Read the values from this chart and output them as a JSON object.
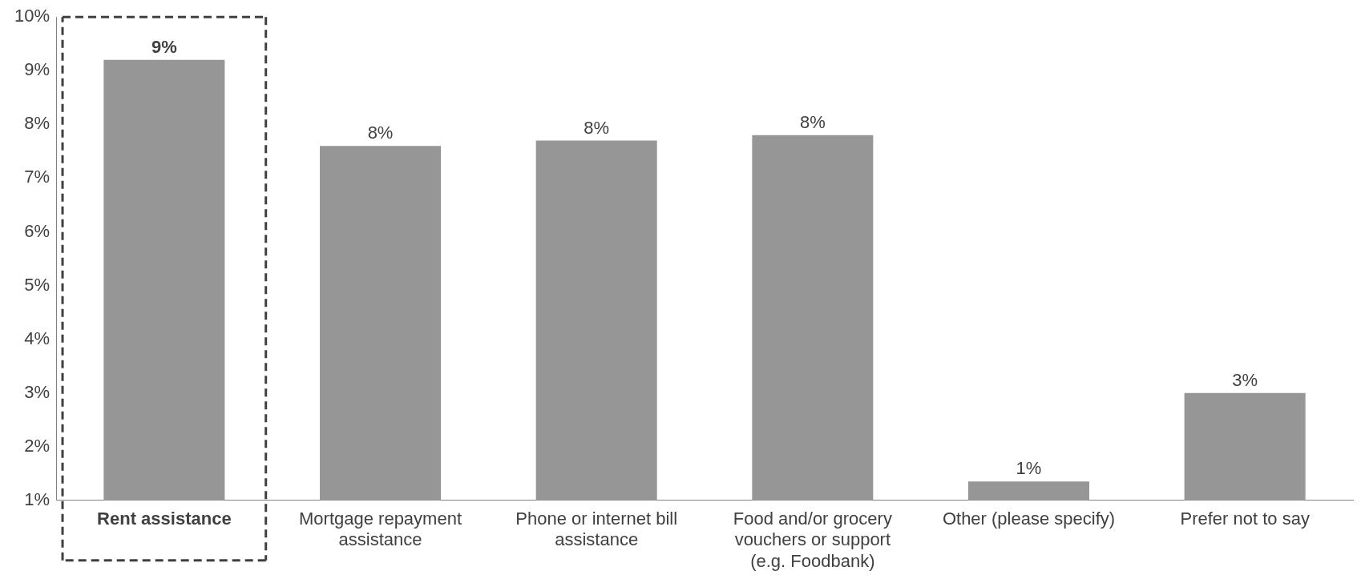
{
  "chart_data": {
    "type": "bar",
    "categories": [
      "Rent assistance",
      "Mortgage repayment assistance",
      "Phone or internet bill assistance",
      "Food and/or grocery vouchers or support (e.g. Foodbank)",
      "Other (please specify)",
      "Prefer not to say"
    ],
    "values": [
      9.2,
      7.6,
      7.7,
      7.8,
      1.35,
      3.0
    ],
    "value_labels": [
      "9%",
      "8%",
      "8%",
      "8%",
      "1%",
      "3%"
    ],
    "color": "#969696",
    "ylim": [
      1,
      10
    ],
    "yticks": [
      {
        "value": 1,
        "label": "1%"
      },
      {
        "value": 2,
        "label": "2%"
      },
      {
        "value": 3,
        "label": "3%"
      },
      {
        "value": 4,
        "label": "4%"
      },
      {
        "value": 5,
        "label": "5%"
      },
      {
        "value": 6,
        "label": "6%"
      },
      {
        "value": 7,
        "label": "7%"
      },
      {
        "value": 8,
        "label": "8%"
      },
      {
        "value": 9,
        "label": "9%"
      },
      {
        "value": 10,
        "label": "10%"
      }
    ],
    "grid": false,
    "legend": false
  }
}
